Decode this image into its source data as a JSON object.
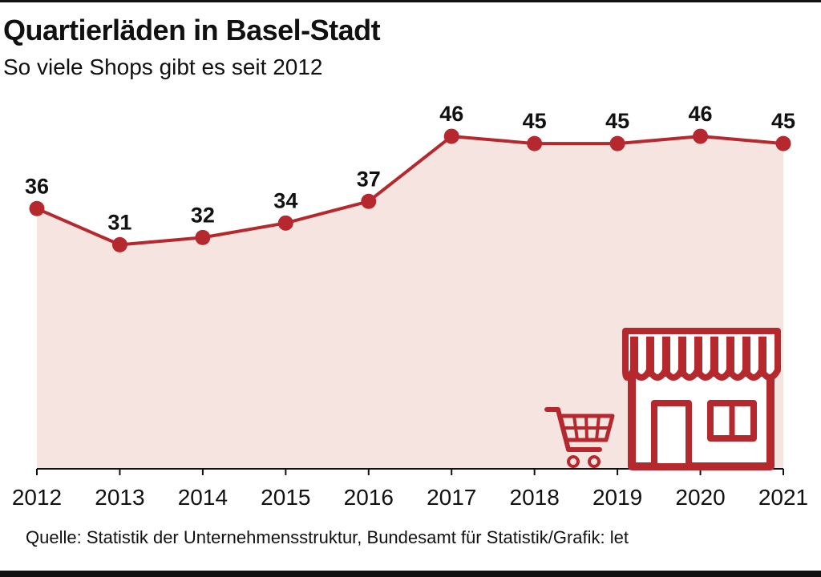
{
  "header": {
    "title": "Quartierläden in Basel-Stadt",
    "subtitle": "So viele Shops gibt es seit 2012"
  },
  "footer": {
    "source": "Quelle: Statistik der Unternehmensstruktur, Bundesamt für Statistik/Grafik: let"
  },
  "colors": {
    "line": "#b5282e",
    "area": "#f6e4e0",
    "icon": "#b5282e",
    "text": "#111111"
  },
  "icons": [
    "shopping-cart-icon",
    "storefront-icon"
  ],
  "chart_data": {
    "type": "area",
    "x": [
      "2012",
      "2013",
      "2014",
      "2015",
      "2016",
      "2017",
      "2018",
      "2019",
      "2020",
      "2021"
    ],
    "series": [
      {
        "values": [
          36,
          31,
          32,
          34,
          37,
          46,
          45,
          45,
          46,
          45
        ]
      }
    ],
    "data_labels": [
      "36",
      "31",
      "32",
      "34",
      "37",
      "46",
      "45",
      "45",
      "46",
      "45"
    ],
    "title": "Quartierläden in Basel-Stadt",
    "subtitle": "So viele Shops gibt es seit 2012",
    "xlabel": "",
    "ylabel": "",
    "ylim": [
      0,
      46
    ],
    "grid": false,
    "legend": "none"
  }
}
